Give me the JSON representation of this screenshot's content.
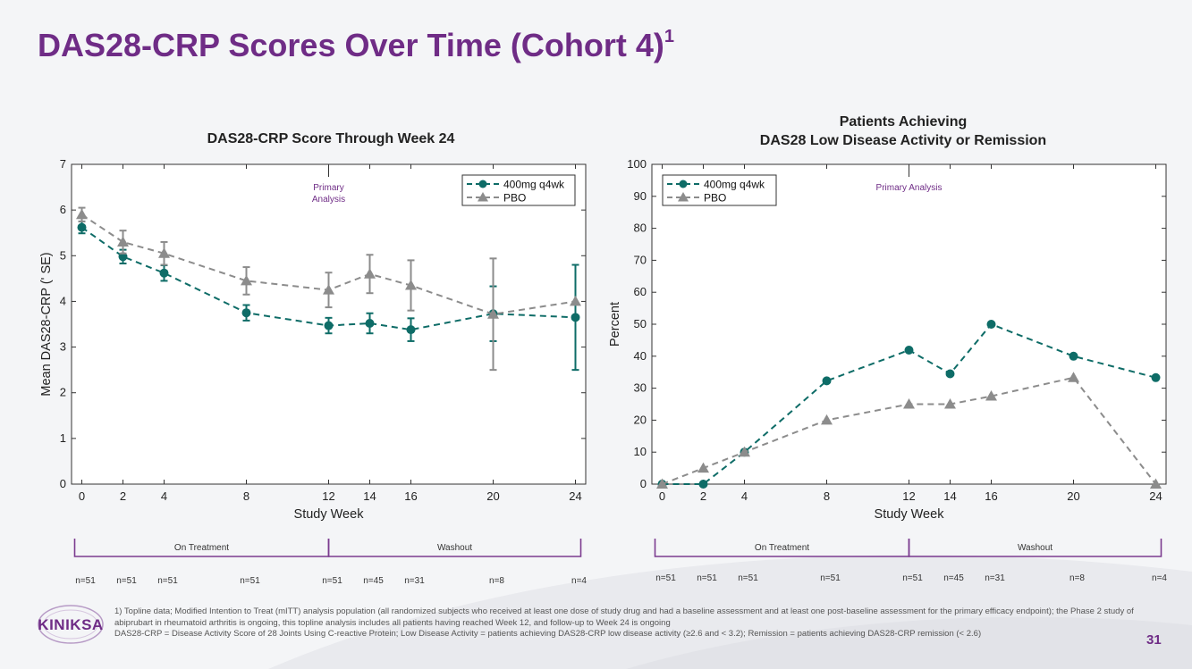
{
  "page": {
    "title": "DAS28-CRP Scores Over Time (Cohort 4)",
    "title_superscript": "1",
    "page_number": "31",
    "logo_text": "KINIKSA",
    "footnotes": [
      "1) Topline data; Modified Intention to Treat (mITT) analysis population (all randomized subjects who received at least one dose of study drug and had a baseline assessment and at least one post-baseline assessment for the primary efficacy endpoint); the Phase 2 study of abiprubart in rheumatoid arthritis is ongoing, this topline analysis includes all patients having reached Week 12, and follow-up to Week 24 is ongoing",
      "DAS28-CRP = Disease Activity Score of 28 Joints Using C-reactive Protein; Low Disease Activity = patients achieving DAS28-CRP low disease activity (≥2.6 and < 3.2); Remission = patients achieving DAS28-CRP remission (< 2.6)"
    ],
    "colors": {
      "brand": "#6f2c86",
      "active": "#0e6c67",
      "placebo": "#8c8c8c"
    }
  },
  "chart_data": [
    {
      "type": "line",
      "title": "DAS28-CRP Score Through Week 24",
      "xlabel": "Study Week",
      "ylabel": "Mean DAS28-CRP (' SE)",
      "xlim": [
        -0.5,
        24.5
      ],
      "ylim": [
        0,
        7
      ],
      "xticks": [
        0,
        2,
        4,
        8,
        12,
        14,
        16,
        20,
        24
      ],
      "yticks": [
        0,
        1,
        2,
        3,
        4,
        5,
        6,
        7
      ],
      "annotation": {
        "x": 12,
        "text": [
          "Primary",
          "Analysis"
        ]
      },
      "legend_position": "top-right",
      "series": [
        {
          "name": "400mg q4wk",
          "marker": "circle",
          "color": "#0e6c67",
          "x": [
            0,
            2,
            4,
            8,
            12,
            14,
            16,
            20,
            24
          ],
          "y": [
            5.62,
            4.98,
            4.62,
            3.75,
            3.47,
            3.52,
            3.38,
            3.73,
            3.65
          ],
          "err": [
            0.13,
            0.15,
            0.17,
            0.17,
            0.17,
            0.22,
            0.25,
            0.6,
            1.15
          ]
        },
        {
          "name": "PBO",
          "marker": "triangle",
          "color": "#8c8c8c",
          "x": [
            0,
            2,
            4,
            8,
            12,
            14,
            16,
            20,
            24
          ],
          "y": [
            5.9,
            5.3,
            5.05,
            4.45,
            4.25,
            4.6,
            4.35,
            3.72,
            4.0
          ],
          "err": [
            0.15,
            0.25,
            0.25,
            0.3,
            0.38,
            0.42,
            0.55,
            1.22,
            0
          ]
        }
      ],
      "phases": [
        {
          "label": "On Treatment",
          "from": 0,
          "to": 12
        },
        {
          "label": "Washout",
          "from": 12,
          "to": 24
        }
      ],
      "n_counts": [
        {
          "x": 0,
          "label": "n=51"
        },
        {
          "x": 2,
          "label": "n=51"
        },
        {
          "x": 4,
          "label": "n=51"
        },
        {
          "x": 8,
          "label": "n=51"
        },
        {
          "x": 12,
          "label": "n=51"
        },
        {
          "x": 14,
          "label": "n=45"
        },
        {
          "x": 16,
          "label": "n=31"
        },
        {
          "x": 20,
          "label": "n=8"
        },
        {
          "x": 24,
          "label": "n=4"
        }
      ]
    },
    {
      "type": "line",
      "title": "Patients Achieving\nDAS28 Low Disease Activity or Remission",
      "xlabel": "Study Week",
      "ylabel": "Percent",
      "xlim": [
        -0.5,
        24.5
      ],
      "ylim": [
        0,
        100
      ],
      "xticks": [
        0,
        2,
        4,
        8,
        12,
        14,
        16,
        20,
        24
      ],
      "yticks": [
        0,
        10,
        20,
        30,
        40,
        50,
        60,
        70,
        80,
        90,
        100
      ],
      "annotation": {
        "x": 12,
        "text": [
          "Primary Analysis"
        ]
      },
      "legend_position": "top-left",
      "series": [
        {
          "name": "400mg q4wk",
          "marker": "circle",
          "color": "#0e6c67",
          "x": [
            0,
            2,
            4,
            8,
            12,
            14,
            16,
            20,
            24
          ],
          "y": [
            0,
            0,
            10,
            32.3,
            41.9,
            34.5,
            50,
            40,
            33.3
          ]
        },
        {
          "name": "PBO",
          "marker": "triangle",
          "color": "#8c8c8c",
          "x": [
            0,
            2,
            4,
            8,
            12,
            14,
            16,
            20,
            24
          ],
          "y": [
            0,
            5,
            10,
            20,
            25,
            25,
            27.5,
            33.3,
            0
          ]
        }
      ],
      "phases": [
        {
          "label": "On Treatment",
          "from": 0,
          "to": 12
        },
        {
          "label": "Washout",
          "from": 12,
          "to": 24
        }
      ],
      "n_counts": [
        {
          "x": 0,
          "label": "n=51"
        },
        {
          "x": 2,
          "label": "n=51"
        },
        {
          "x": 4,
          "label": "n=51"
        },
        {
          "x": 8,
          "label": "n=51"
        },
        {
          "x": 12,
          "label": "n=51"
        },
        {
          "x": 14,
          "label": "n=45"
        },
        {
          "x": 16,
          "label": "n=31"
        },
        {
          "x": 20,
          "label": "n=8"
        },
        {
          "x": 24,
          "label": "n=4"
        }
      ]
    }
  ]
}
